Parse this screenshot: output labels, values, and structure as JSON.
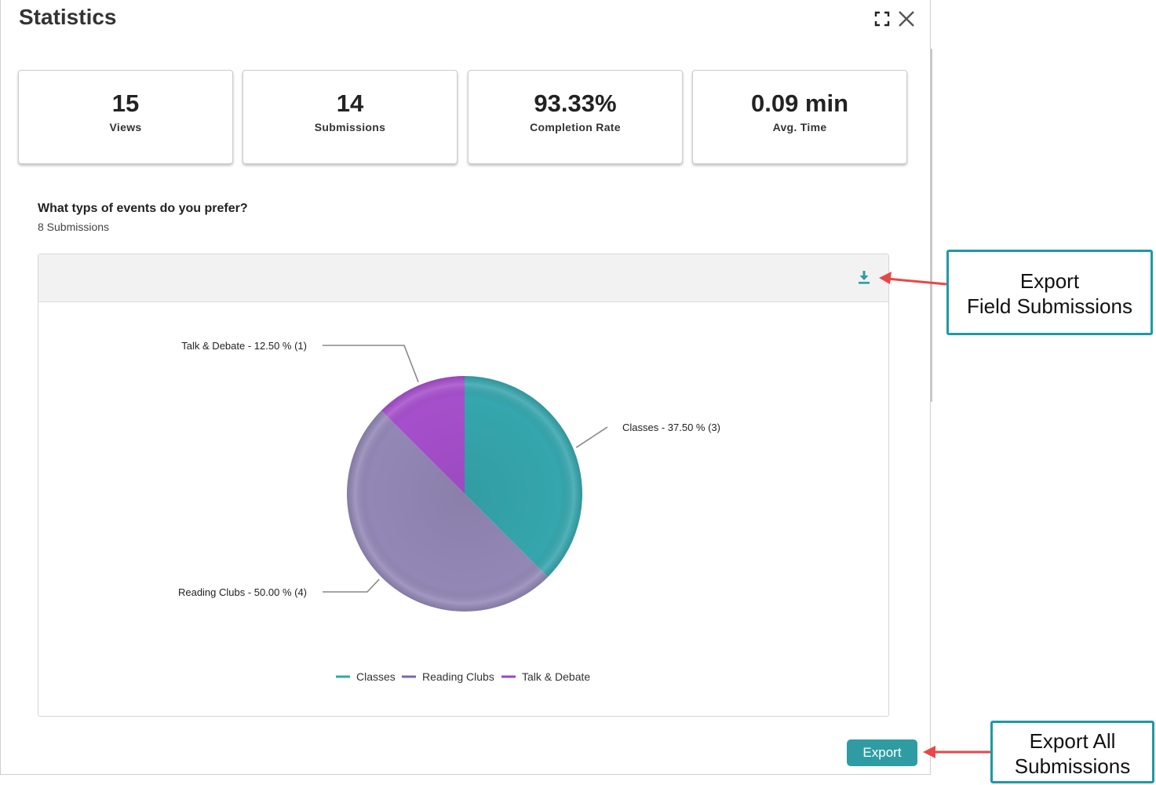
{
  "modal": {
    "title": "Statistics",
    "icons": {
      "expand": "expand-icon",
      "close": "close-icon"
    }
  },
  "stats": [
    {
      "value": "15",
      "label": "Views"
    },
    {
      "value": "14",
      "label": "Submissions"
    },
    {
      "value": "93.33%",
      "label": "Completion Rate"
    },
    {
      "value": "0.09 min",
      "label": "Avg. Time"
    }
  ],
  "question": {
    "title": "What typs of events do you prefer?",
    "submissions": "8 Submissions"
  },
  "chart_data": {
    "type": "pie",
    "slices": [
      {
        "name": "Classes",
        "percent": 37.5,
        "count": 3,
        "color": "#35a6ad",
        "label": "Classes - 37.50 % (3)"
      },
      {
        "name": "Reading Clubs",
        "percent": 50.0,
        "count": 4,
        "color": "#9387b6",
        "label": "Reading Clubs - 50.00 % (4)"
      },
      {
        "name": "Talk & Debate",
        "percent": 12.5,
        "count": 1,
        "color": "#a64fcc",
        "label": "Talk & Debate - 12.50 % (1)"
      }
    ],
    "legend": [
      "Classes",
      "Reading Clubs",
      "Talk & Debate"
    ],
    "legend_colors": [
      "#35a6ad",
      "#7a68a6",
      "#9a44cc"
    ],
    "legend_placement": "bottom-center"
  },
  "chart_toolbar": {
    "download_icon": "download-icon"
  },
  "actions": {
    "export_label": "Export"
  },
  "callouts": {
    "field_export": [
      "Export",
      "Field Submissions"
    ],
    "all_export": [
      "Export All",
      "Submissions"
    ]
  },
  "colors": {
    "accent": "#2f9ca3",
    "callout_border": "#1d9aa3",
    "arrow": "#e8474a"
  }
}
